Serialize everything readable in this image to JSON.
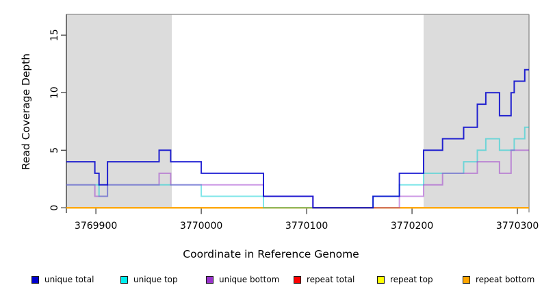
{
  "chart_data": {
    "type": "line",
    "subtype": "step-after",
    "title": "",
    "xlabel": "Coordinate in Reference Genome",
    "ylabel": "Read Coverage Depth",
    "xlim": [
      3769872,
      3770311
    ],
    "ylim": [
      0,
      16.8
    ],
    "grid": false,
    "legend_position": "bottom",
    "x_ticks": [
      3769900,
      3770000,
      3770100,
      3770200,
      3770300
    ],
    "y_ticks": [
      0,
      5,
      10,
      15
    ],
    "x_breakpoints": [
      3769872,
      3769899,
      3769903,
      3769911,
      3769960,
      3769971,
      3770000,
      3770059,
      3770106,
      3770163,
      3770188,
      3770211,
      3770229,
      3770249,
      3770262,
      3770270,
      3770283,
      3770294,
      3770297,
      3770307,
      3770311
    ],
    "series": [
      {
        "name": "repeat total",
        "color": "#EE0000",
        "opacity": 1.0,
        "values": [
          0,
          0,
          0,
          0,
          0,
          0,
          0,
          0,
          0,
          0,
          0,
          0,
          0,
          0,
          0,
          0,
          0,
          0,
          0,
          0
        ]
      },
      {
        "name": "repeat top",
        "color": "#FFFF00",
        "opacity": 1.0,
        "values": [
          0,
          0,
          0,
          0,
          0,
          0,
          0,
          0,
          0,
          0,
          0,
          0,
          0,
          0,
          0,
          0,
          0,
          0,
          0,
          0
        ]
      },
      {
        "name": "repeat bottom",
        "color": "#FFA500",
        "opacity": 1.0,
        "values": [
          0,
          0,
          0,
          0,
          0,
          0,
          0,
          0,
          0,
          0,
          0,
          0,
          0,
          0,
          0,
          0,
          0,
          0,
          0,
          0
        ]
      },
      {
        "name": "unique top",
        "color": "#00CED1",
        "opacity": 0.5,
        "values": [
          2,
          2,
          1,
          2,
          2,
          2,
          1,
          0,
          0,
          1,
          2,
          3,
          3,
          4,
          5,
          6,
          5,
          5,
          6,
          7
        ]
      },
      {
        "name": "unique bottom",
        "color": "#9932CC",
        "opacity": 0.5,
        "values": [
          2,
          1,
          1,
          2,
          3,
          2,
          2,
          1,
          0,
          0,
          1,
          2,
          3,
          3,
          4,
          4,
          3,
          5,
          5,
          5
        ]
      },
      {
        "name": "unique total",
        "color": "#0000CD",
        "opacity": 0.85,
        "values": [
          4,
          3,
          2,
          4,
          5,
          4,
          3,
          1,
          0,
          1,
          3,
          5,
          6,
          7,
          9,
          10,
          8,
          10,
          11,
          12
        ]
      }
    ],
    "highlight_bands": [
      {
        "x0": 3769872,
        "x1": 3769972
      },
      {
        "x0": 3770211,
        "x1": 3770311
      }
    ],
    "band_color": "#DCDCDC"
  },
  "legend": {
    "items": [
      {
        "label": "unique total",
        "color": "#0000CD"
      },
      {
        "label": "unique top",
        "color": "#00EEEE"
      },
      {
        "label": "unique bottom",
        "color": "#9932CC"
      },
      {
        "label": "repeat total",
        "color": "#FF0000"
      },
      {
        "label": "repeat top",
        "color": "#FFFF00"
      },
      {
        "label": "repeat bottom",
        "color": "#FFA500"
      }
    ]
  }
}
